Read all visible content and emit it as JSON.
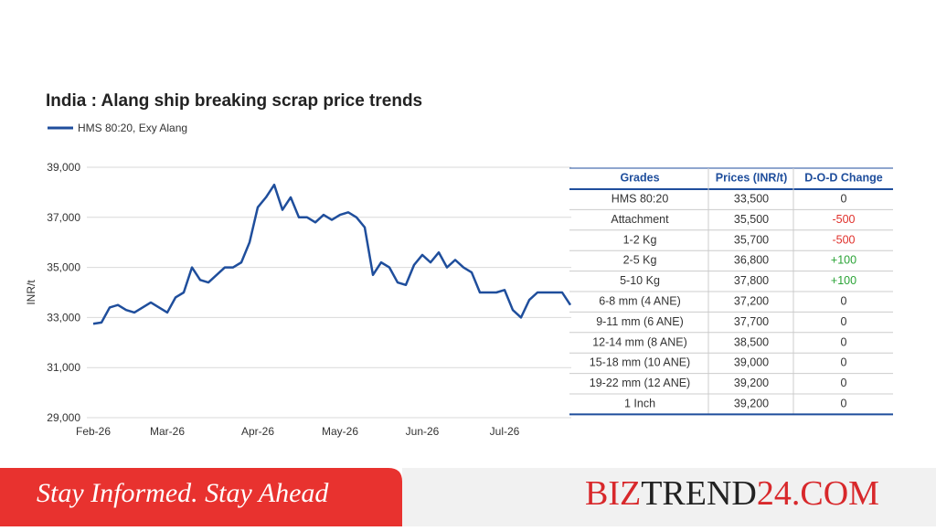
{
  "chart_data": {
    "type": "line",
    "title": "India : Alang ship breaking scrap price trends",
    "y_label": "INR/t",
    "categories": [
      "Feb-26",
      null,
      null,
      null,
      null,
      null,
      null,
      null,
      null,
      "Mar-26",
      null,
      null,
      null,
      null,
      null,
      null,
      null,
      null,
      null,
      null,
      "Apr-26",
      null,
      null,
      null,
      null,
      null,
      null,
      null,
      null,
      null,
      "May-26",
      null,
      null,
      null,
      null,
      null,
      null,
      null,
      null,
      null,
      "Jun-26",
      null,
      null,
      null,
      null,
      null,
      null,
      null,
      null,
      null,
      "Jul-26",
      null,
      null,
      null,
      null,
      null,
      null,
      null,
      null
    ],
    "series": [
      {
        "name": "HMS 80:20, Exy Alang",
        "color": "#1f4e9c",
        "values": [
          32750,
          32800,
          33400,
          33500,
          33300,
          33200,
          33400,
          33600,
          33400,
          33200,
          33800,
          34000,
          35000,
          34500,
          34400,
          34700,
          35000,
          35000,
          35200,
          36000,
          37400,
          37800,
          38300,
          37300,
          37800,
          37000,
          37000,
          36800,
          37100,
          36900,
          37100,
          37200,
          37000,
          36600,
          34700,
          35200,
          35000,
          34400,
          34300,
          35100,
          35500,
          35200,
          35600,
          35000,
          35300,
          35000,
          34800,
          34000,
          34000,
          34000,
          34100,
          33300,
          33000,
          33700,
          34000,
          34000,
          34000,
          34000,
          33500
        ]
      }
    ],
    "ylim": [
      29000,
      39000
    ],
    "yticks": [
      {
        "value": 29000,
        "label": "29,000"
      },
      {
        "value": 31000,
        "label": "31,000"
      },
      {
        "value": 33000,
        "label": "33,000"
      },
      {
        "value": 35000,
        "label": "35,000"
      },
      {
        "value": 37000,
        "label": "37,000"
      },
      {
        "value": 39000,
        "label": "39,000"
      }
    ],
    "grid": true
  },
  "table": {
    "header": [
      "Grades",
      "Prices (INR/t)",
      "D-O-D Change"
    ],
    "rows": [
      [
        "HMS 80:20",
        "33,500",
        "0"
      ],
      [
        "Attachment",
        "35,500",
        "-500"
      ],
      [
        "1-2 Kg",
        "35,700",
        "-500"
      ],
      [
        "2-5 Kg",
        "36,800",
        "+100"
      ],
      [
        "5-10 Kg",
        "37,800",
        "+100"
      ],
      [
        "6-8 mm (4 ANE)",
        "37,200",
        "0"
      ],
      [
        "9-11 mm (6 ANE)",
        "37,700",
        "0"
      ],
      [
        "12-14 mm (8 ANE)",
        "38,500",
        "0"
      ],
      [
        "15-18 mm (10 ANE)",
        "39,000",
        "0"
      ],
      [
        "19-22 mm (12 ANE)",
        "39,200",
        "0"
      ],
      [
        "1 Inch",
        "39,200",
        "0"
      ]
    ]
  },
  "banner": {
    "tagline": "Stay Informed. Stay Ahead",
    "brand": [
      "BIZ",
      "TREND",
      "24.COM"
    ]
  }
}
